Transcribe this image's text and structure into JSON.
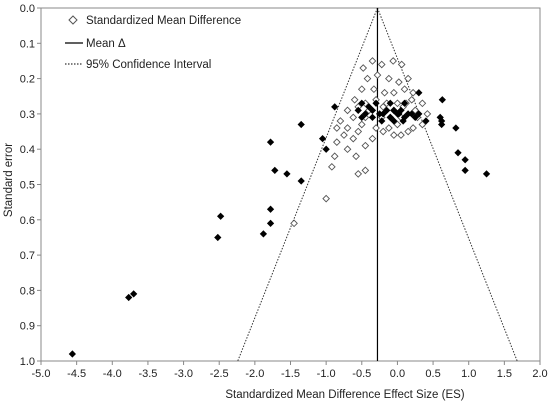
{
  "chart_data": {
    "type": "scatter",
    "title": "",
    "xlabel": "Standardized Mean Difference Effect Size (ES)",
    "ylabel": "Standard error",
    "xlim": [
      -5.0,
      2.0
    ],
    "ylim": [
      0.0,
      1.0
    ],
    "y_inverted": true,
    "xticks": [
      "-5.0",
      "-4.5",
      "-4.0",
      "-3.5",
      "-3.0",
      "-2.5",
      "-2.0",
      "-1.5",
      "-1.0",
      "-0.5",
      "0.0",
      "0.5",
      "1.0",
      "1.5",
      "2.0"
    ],
    "yticks": [
      "0.0",
      "0.1",
      "0.2",
      "0.3",
      "0.4",
      "0.5",
      "0.6",
      "0.7",
      "0.8",
      "0.9",
      "1.0"
    ],
    "grid": false,
    "legend_position": "top-left",
    "legend": [
      {
        "label": "Standardized Mean Difference",
        "marker": "hollow-diamond"
      },
      {
        "label": "Mean Δ",
        "marker": "solid-line"
      },
      {
        "label": "95% Confidence Interval",
        "marker": "dotted-line"
      }
    ],
    "mean_es": -0.28,
    "ci_lines": [
      {
        "x": [
          -0.28,
          -2.24
        ],
        "y": [
          0.0,
          1.0
        ]
      },
      {
        "x": [
          -0.28,
          1.68
        ],
        "y": [
          0.0,
          1.0
        ]
      }
    ],
    "series": [
      {
        "name": "Standardized Mean Difference",
        "marker": "hollow-diamond",
        "color": "#555555",
        "points": [
          [
            -0.48,
            0.17
          ],
          [
            -0.35,
            0.15
          ],
          [
            -0.22,
            0.16
          ],
          [
            -0.06,
            0.15
          ],
          [
            0.06,
            0.16
          ],
          [
            -0.42,
            0.2
          ],
          [
            -0.28,
            0.19
          ],
          [
            -0.12,
            0.2
          ],
          [
            0.02,
            0.21
          ],
          [
            0.15,
            0.2
          ],
          [
            -0.5,
            0.23
          ],
          [
            -0.33,
            0.23
          ],
          [
            -0.18,
            0.24
          ],
          [
            -0.05,
            0.24
          ],
          [
            0.1,
            0.23
          ],
          [
            0.22,
            0.24
          ],
          [
            -0.6,
            0.26
          ],
          [
            -0.45,
            0.27
          ],
          [
            -0.3,
            0.26
          ],
          [
            -0.15,
            0.27
          ],
          [
            0.0,
            0.27
          ],
          [
            0.12,
            0.27
          ],
          [
            0.2,
            0.26
          ],
          [
            0.35,
            0.27
          ],
          [
            -0.7,
            0.29
          ],
          [
            -0.55,
            0.28
          ],
          [
            -0.4,
            0.29
          ],
          [
            -0.2,
            0.28
          ],
          [
            -0.05,
            0.29
          ],
          [
            0.08,
            0.28
          ],
          [
            0.25,
            0.29
          ],
          [
            0.42,
            0.3
          ],
          [
            -0.8,
            0.32
          ],
          [
            -0.62,
            0.31
          ],
          [
            -0.45,
            0.31
          ],
          [
            -0.22,
            0.31
          ],
          [
            -0.1,
            0.31
          ],
          [
            0.05,
            0.31
          ],
          [
            0.28,
            0.31
          ],
          [
            -0.85,
            0.34
          ],
          [
            -0.7,
            0.34
          ],
          [
            -0.5,
            0.33
          ],
          [
            -0.3,
            0.34
          ],
          [
            -0.12,
            0.34
          ],
          [
            0.0,
            0.33
          ],
          [
            0.22,
            0.34
          ],
          [
            0.35,
            0.33
          ],
          [
            -0.75,
            0.36
          ],
          [
            -0.55,
            0.35
          ],
          [
            -0.2,
            0.35
          ],
          [
            0.05,
            0.36
          ],
          [
            0.15,
            0.35
          ],
          [
            -0.85,
            0.38
          ],
          [
            -0.62,
            0.37
          ],
          [
            -0.35,
            0.37
          ],
          [
            -0.05,
            0.36
          ],
          [
            -0.7,
            0.4
          ],
          [
            -0.45,
            0.39
          ],
          [
            -0.88,
            0.42
          ],
          [
            -0.58,
            0.42
          ],
          [
            -0.92,
            0.45
          ],
          [
            -0.45,
            0.46
          ],
          [
            -0.55,
            0.47
          ],
          [
            -1.0,
            0.54
          ],
          [
            -1.45,
            0.61
          ]
        ]
      },
      {
        "name": "",
        "marker": "solid-diamond",
        "color": "#000000",
        "points": [
          [
            -4.56,
            0.98
          ],
          [
            -3.7,
            0.81
          ],
          [
            -3.77,
            0.82
          ],
          [
            -2.52,
            0.65
          ],
          [
            -2.48,
            0.59
          ],
          [
            -1.88,
            0.64
          ],
          [
            -1.78,
            0.57
          ],
          [
            -1.78,
            0.61
          ],
          [
            -1.72,
            0.46
          ],
          [
            -1.78,
            0.38
          ],
          [
            -1.55,
            0.47
          ],
          [
            -1.35,
            0.33
          ],
          [
            -1.35,
            0.49
          ],
          [
            -1.05,
            0.37
          ],
          [
            -1.0,
            0.4
          ],
          [
            -0.88,
            0.28
          ],
          [
            -0.5,
            0.27
          ],
          [
            0.3,
            0.24
          ],
          [
            0.4,
            0.32
          ],
          [
            0.3,
            0.3
          ],
          [
            0.6,
            0.31
          ],
          [
            0.62,
            0.33
          ],
          [
            0.62,
            0.32
          ],
          [
            0.63,
            0.26
          ],
          [
            0.82,
            0.34
          ],
          [
            0.85,
            0.41
          ],
          [
            0.95,
            0.43
          ],
          [
            0.95,
            0.46
          ],
          [
            1.25,
            0.47
          ],
          [
            -0.55,
            0.29
          ],
          [
            -0.5,
            0.31
          ],
          [
            -0.45,
            0.3
          ],
          [
            -0.4,
            0.28
          ],
          [
            -0.35,
            0.29
          ],
          [
            -0.3,
            0.27
          ],
          [
            -0.25,
            0.3
          ],
          [
            -0.2,
            0.3
          ],
          [
            -0.15,
            0.29
          ],
          [
            -0.1,
            0.31
          ],
          [
            -0.05,
            0.29
          ],
          [
            0.0,
            0.3
          ],
          [
            0.05,
            0.29
          ],
          [
            0.1,
            0.31
          ],
          [
            0.15,
            0.3
          ],
          [
            0.2,
            0.3
          ],
          [
            0.25,
            0.31
          ],
          [
            0.02,
            0.3
          ],
          [
            -0.1,
            0.27
          ],
          [
            0.1,
            0.27
          ],
          [
            -0.35,
            0.31
          ],
          [
            -0.05,
            0.32
          ],
          [
            0.08,
            0.32
          ],
          [
            -0.22,
            0.32
          ]
        ]
      }
    ]
  }
}
